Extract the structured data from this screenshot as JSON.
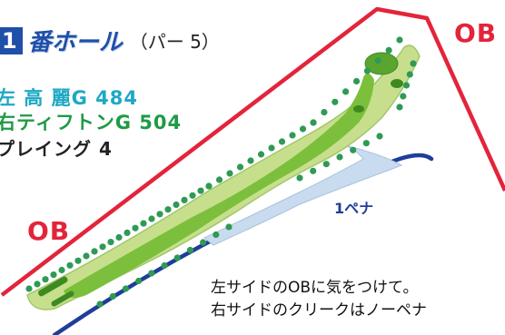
{
  "hole": {
    "number": "1",
    "label": "番ホール",
    "par": "（パー 5）"
  },
  "yardage": {
    "line1": "左 高 麗G 484",
    "line2": "右ティフトンG 504",
    "line3": "プレイング 4"
  },
  "map": {
    "ob_right": "OB",
    "ob_left": "OB",
    "penalty": "1ペナ"
  },
  "notes": {
    "line1": "左サイドのOBに気をつけて。",
    "line2": "右サイドのクリークはノーペナ"
  },
  "colors": {
    "ob_line": "#e3243b",
    "penalty_line": "#1f3e99",
    "creek": "#c9dcef",
    "fairway": "#7cbf3c",
    "rough": "#c7df8d",
    "trees": "#2f9a55",
    "title": "#1f4fa8"
  }
}
